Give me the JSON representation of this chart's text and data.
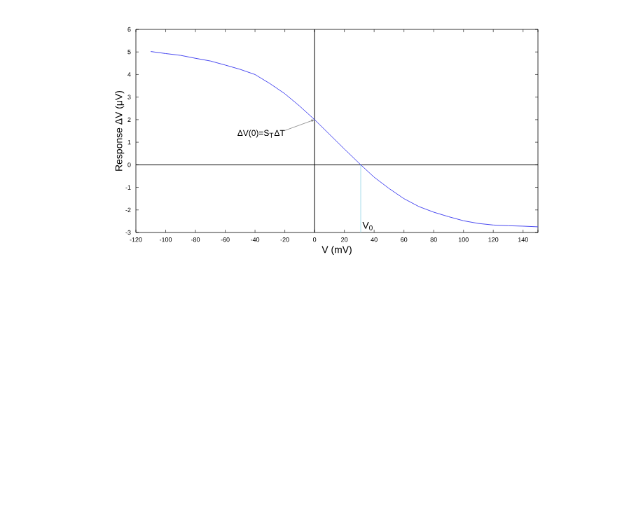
{
  "chart_data": {
    "type": "line",
    "xlabel": "V (mV)",
    "ylabel": "Response  ΔV (μV)",
    "x": [
      -110,
      -100,
      -90,
      -80,
      -70,
      -60,
      -50,
      -40,
      -30,
      -20,
      -10,
      0,
      10,
      20,
      31,
      40,
      50,
      60,
      70,
      80,
      90,
      100,
      110,
      120,
      130,
      140,
      150
    ],
    "series": [
      {
        "color": "#4848f0",
        "values": [
          5.02,
          4.93,
          4.85,
          4.72,
          4.6,
          4.42,
          4.23,
          4.0,
          3.6,
          3.15,
          2.6,
          2.0,
          1.35,
          0.7,
          0.0,
          -0.55,
          -1.05,
          -1.5,
          -1.85,
          -2.1,
          -2.3,
          -2.48,
          -2.6,
          -2.67,
          -2.7,
          -2.72,
          -2.75
        ]
      }
    ],
    "xlim": [
      -120,
      150
    ],
    "ylim": [
      -3,
      6
    ],
    "xticks": [
      -120,
      -100,
      -80,
      -60,
      -40,
      -20,
      0,
      20,
      40,
      60,
      80,
      100,
      120,
      140,
      {
        "value": 150,
        "label": null
      }
    ],
    "yticks": [
      -3,
      -2,
      -1,
      0,
      1,
      2,
      3,
      4,
      5,
      6
    ],
    "ref_lines": [
      {
        "axis": "x",
        "value": 0,
        "color": "#000000"
      },
      {
        "axis": "y",
        "value": 0,
        "color": "#000000"
      },
      {
        "axis": "x",
        "value": 31,
        "label": "V$_{0}$",
        "color": "#a8dcec"
      }
    ],
    "annotations": [
      {
        "text": "ΔV(0)=S$_{T}$ΔT",
        "x": 0,
        "y": 2
      }
    ],
    "grid": false,
    "marker": "none",
    "line_style": "solid"
  }
}
